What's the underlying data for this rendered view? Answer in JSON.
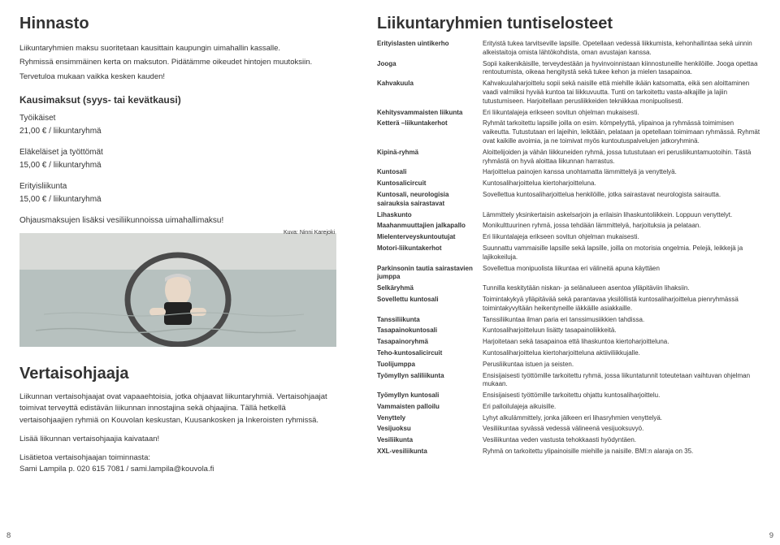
{
  "left": {
    "title": "Hinnasto",
    "intro": [
      "Liikuntaryhmien maksu suoritetaan kausittain kaupungin uimahallin kassalle.",
      "Ryhmissä ensimmäinen kerta on maksuton. Pidätämme oikeudet hintojen muutoksiin.",
      "Tervetuloa mukaan vaikka kesken kauden!"
    ],
    "seasonHeading": "Kausimaksut (syys- tai kevätkausi)",
    "groups": [
      {
        "name": "Työikäiset",
        "price": "21,00 € / liikuntaryhmä"
      },
      {
        "name": "Eläkeläiset ja työttömät",
        "price": "15,00 € / liikuntaryhmä"
      },
      {
        "name": "Erityisliikunta",
        "price": "15,00 € / liikuntaryhmä"
      }
    ],
    "extraNote": "Ohjausmaksujen lisäksi vesiliikunnoissa uimahallimaksu!",
    "photoCredit": "Kuva: Ninni Karejoki",
    "vertaisTitle": "Vertaisohjaaja",
    "vertaisParas": [
      "Liikunnan vertaisohjaajat ovat vapaaehtoisia, jotka ohjaavat liikuntaryhmiä. Vertaisohjaajat toimivat terveyttä edistävän liikunnan innostajina sekä ohjaajina. Tällä hetkellä vertaisohjaajien ryhmiä on Kouvolan keskustan, Kuusankosken ja Inkeroisten ryhmissä.",
      "Lisää liikunnan vertaisohjaajia kaivataan!",
      "Lisätietoa vertaisohjaajan toiminnasta:\nSami Lampila p. 020 615 7081 / sami.lampila@kouvola.fi"
    ],
    "pageNum": "8"
  },
  "right": {
    "title": "Liikuntaryhmien tuntiselosteet",
    "rows": [
      {
        "term": "Erityislasten uintikerho",
        "def": "Erityistä tukea tarvitseville lapsille. Opetellaan vedessä liikkumista, kehonhallintaa sekä uinnin alkeistaitoja omista lähtökohdista, oman avustajan kanssa."
      },
      {
        "term": "Jooga",
        "def": "Sopii kaikenikäisille, terveydestään ja hyvinvoinnistaan kiinnostuneille henkilöille. Jooga opettaa rentoutumista, oikeaa hengitystä sekä tukee kehon ja mielen tasapainoa."
      },
      {
        "term": "Kahvakuula",
        "def": "Kahvakuulaharjoittelu sopii sekä naisille että miehille ikään katsomatta, eikä sen aloittaminen vaadi valmiiksi hyvää kuntoa tai liikkuvuutta. Tunti on tarkoitettu vasta-alkajille ja lajiin tutustumiseen. Harjoitellaan perusliikkeiden tekniikkaa monipuolisesti."
      },
      {
        "term": "Kehitysvammaisten liikunta",
        "def": "Eri liikuntalajeja erikseen sovitun ohjelman mukaisesti."
      },
      {
        "term": "Ketterä –liikuntakerhot",
        "def": "Ryhmät tarkoitettu lapsille joilla on esim. kömpelyyttä, ylipainoa ja ryhmässä toimimisen vaikeutta. Tutustutaan eri lajeihin, leikitään, pelataan ja opetellaan toimimaan ryhmässä. Ryhmät ovat kaikille avoimia, ja ne toimivat myös kuntoutuspalvelujen jatkoryhminä."
      },
      {
        "term": "Kipinä-ryhmä",
        "def": "Aloittelijoiden ja vähän liikkuneiden ryhmä, jossa tutustutaan eri perusliikuntamuotoihin. Tästä ryhmästä on hyvä aloittaa liikunnan harrastus."
      },
      {
        "term": "Kuntosali",
        "def": "Harjoittelua painojen kanssa unohtamatta lämmittelyä ja venyttelyä."
      },
      {
        "term": "Kuntosalicircuit",
        "def": "Kuntosaliharjoittelua kiertoharjoitteluna."
      },
      {
        "term": "Kuntosali, neurologisia sairauksia sairastavat",
        "def": "Sovellettua kuntosaliharjoittelua henkilöille, jotka sairastavat neurologista sairautta."
      },
      {
        "term": "Lihaskunto",
        "def": "Lämmittely yksinkertaisin askelsarjoin ja erilaisin lihaskuntoliikkein. Loppuun venyttelyt."
      },
      {
        "term": "Maahanmuuttajien jalkapallo",
        "def": "Monikulttuurinen ryhmä, jossa tehdään lämmittelyä, harjoituksia ja pelataan."
      },
      {
        "term": "Mielenterveyskuntoutujat",
        "def": "Eri liikuntalajeja erikseen sovitun ohjelman mukaisesti."
      },
      {
        "term": "Motori-liikuntakerhot",
        "def": "Suunnattu vammaisille lapsille sekä lapsille, joilla on motorisia ongelmia. Pelejä, leikkejä ja lajikokeiluja."
      },
      {
        "term": "Parkinsonin tautia sairastavien jumppa",
        "def": "Sovellettua monipuolista liikuntaa eri välineitä apuna käyttäen"
      },
      {
        "term": "Selkäryhmä",
        "def": "Tunnilla keskitytään niskan- ja selänalueen asentoa ylläpitäviin lihaksiin."
      },
      {
        "term": "Sovellettu kuntosali",
        "def": "Toimintakykyä ylläpitävää sekä parantavaa yksilöllistä kuntosaliharjoittelua pienryhmässä toimintakyvyltään heikentyneille iäkkäille asiakkaille."
      },
      {
        "term": "Tanssiliikunta",
        "def": "Tanssiliikuntaa ilman paria eri tanssimusiikkien tahdissa."
      },
      {
        "term": "Tasapainokuntosali",
        "def": "Kuntosaliharjoitteluun lisätty tasapainoliikkeitä."
      },
      {
        "term": "Tasapainoryhmä",
        "def": "Harjoitetaan sekä tasapainoa että lihaskuntoa kiertoharjoitteluna."
      },
      {
        "term": "Teho-kuntosalicircuit",
        "def": "Kuntosaliharjoittelua kiertoharjoitteluna aktiiviliikkujalle."
      },
      {
        "term": "Tuolijumppa",
        "def": "Perusliikuntaa istuen ja seisten."
      },
      {
        "term": "Työmyllyn saliliikunta",
        "def": "Ensisijaisesti työttömille tarkoitettu ryhmä, jossa liikuntatunnit toteutetaan vaihtuvan ohjelman mukaan."
      },
      {
        "term": "Työmyllyn kuntosali",
        "def": "Ensisijaisesti työttömille tarkoitettu ohjattu kuntosaliharjoittelu."
      },
      {
        "term": "Vammaisten palloilu",
        "def": "Eri palloilulajeja aikuisille."
      },
      {
        "term": "Venyttely",
        "def": "Lyhyt alkulämmittely, jonka jälkeen eri lihasryhmien venyttelyä."
      },
      {
        "term": "Vesijuoksu",
        "def": "Vesiliikuntaa syvässä vedessä välineenä vesijuoksuvyö."
      },
      {
        "term": "Vesiliikunta",
        "def": "Vesiliikuntaa veden vastusta tehokkaasti hyödyntäen."
      },
      {
        "term": "XXL-vesiliikunta",
        "def": "Ryhmä on tarkoitettu ylipainoisille miehille ja naisille. BMI:n alaraja on 35."
      }
    ],
    "pageNum": "9"
  },
  "photo": {
    "waterColor": "#b7c1bf",
    "wallColor": "#d8dad7",
    "ringColor": "#4a4a4a",
    "swimmerBody": "#e8d8c8",
    "swimsuit": "#222222",
    "capColor": "#d0d0d0"
  }
}
